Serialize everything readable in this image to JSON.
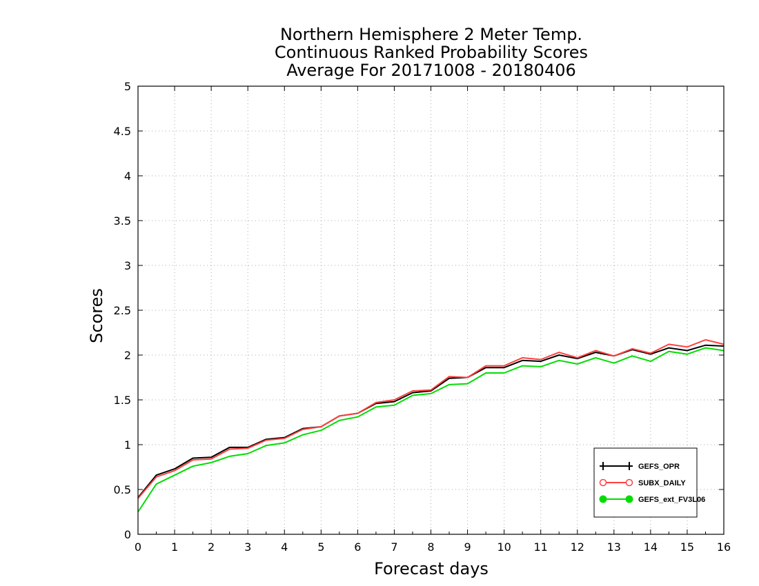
{
  "chart_data": {
    "type": "line",
    "title_lines": [
      "Northern Hemisphere 2 Meter Temp.",
      "Continuous Ranked Probability Scores",
      "Average For 20171008 - 20180406"
    ],
    "xlabel": "Forecast days",
    "ylabel": "Scores",
    "xlim": [
      0,
      16
    ],
    "ylim": [
      0,
      5
    ],
    "x_ticks": [
      "0",
      "1",
      "2",
      "3",
      "4",
      "5",
      "6",
      "7",
      "8",
      "9",
      "10",
      "11",
      "12",
      "13",
      "14",
      "15",
      "16"
    ],
    "y_ticks": [
      "0",
      "0.5",
      "1",
      "1.5",
      "2",
      "2.5",
      "3",
      "3.5",
      "4",
      "4.5",
      "5"
    ],
    "grid": true,
    "legend_position": "bottom-right",
    "x": [
      0,
      0.5,
      1,
      1.5,
      2,
      2.5,
      3,
      3.5,
      4,
      4.5,
      5,
      5.5,
      6,
      6.5,
      7,
      7.5,
      8,
      8.5,
      9,
      9.5,
      10,
      10.5,
      11,
      11.5,
      12,
      12.5,
      13,
      13.5,
      14,
      14.5,
      15,
      15.5,
      16
    ],
    "series": [
      {
        "name": "GEFS_OPR",
        "color": "#000000",
        "marker": "plus",
        "values": [
          0.41,
          0.66,
          0.73,
          0.85,
          0.86,
          0.97,
          0.97,
          1.06,
          1.08,
          1.18,
          1.2,
          1.32,
          1.35,
          1.46,
          1.48,
          1.58,
          1.6,
          1.74,
          1.75,
          1.86,
          1.86,
          1.94,
          1.93,
          2.0,
          1.96,
          2.03,
          1.99,
          2.06,
          2.01,
          2.08,
          2.05,
          2.11,
          2.1
        ]
      },
      {
        "name": "SUBX_DAILY",
        "color": "#ff4040",
        "marker": "open-circle",
        "values": [
          0.4,
          0.64,
          0.71,
          0.83,
          0.84,
          0.95,
          0.96,
          1.05,
          1.07,
          1.17,
          1.2,
          1.32,
          1.35,
          1.47,
          1.5,
          1.6,
          1.61,
          1.76,
          1.75,
          1.88,
          1.88,
          1.97,
          1.95,
          2.03,
          1.97,
          2.05,
          1.99,
          2.07,
          2.02,
          2.12,
          2.09,
          2.17,
          2.12
        ]
      },
      {
        "name": "GEFS_ext_FV3L06",
        "color": "#00dd00",
        "marker": "filled-circle",
        "values": [
          0.25,
          0.56,
          0.66,
          0.76,
          0.8,
          0.87,
          0.9,
          0.99,
          1.02,
          1.11,
          1.16,
          1.27,
          1.31,
          1.42,
          1.44,
          1.55,
          1.57,
          1.67,
          1.68,
          1.8,
          1.8,
          1.88,
          1.87,
          1.94,
          1.9,
          1.97,
          1.91,
          1.99,
          1.93,
          2.04,
          2.01,
          2.08,
          2.05
        ]
      }
    ]
  }
}
